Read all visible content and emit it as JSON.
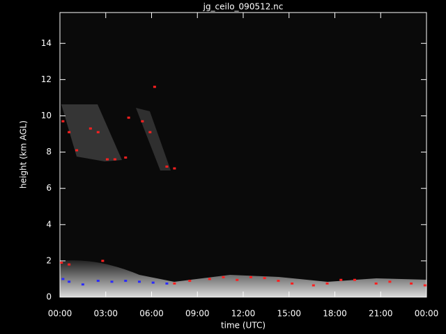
{
  "chart_data": {
    "type": "scatter",
    "title": "jg_ceilo_090512.nc",
    "x_label": "time (UTC)",
    "y_label": "height (km AGL)",
    "xlim": [
      0,
      24
    ],
    "ylim": [
      0,
      15.7
    ],
    "xticks": [
      {
        "value": 0,
        "label": "00:00"
      },
      {
        "value": 3,
        "label": "03:00"
      },
      {
        "value": 6,
        "label": "06:00"
      },
      {
        "value": 9,
        "label": "09:00"
      },
      {
        "value": 12,
        "label": "12:00"
      },
      {
        "value": 15,
        "label": "15:00"
      },
      {
        "value": 18,
        "label": "18:00"
      },
      {
        "value": 21,
        "label": "21:00"
      },
      {
        "value": 24,
        "label": "00:00"
      }
    ],
    "yticks": [
      0,
      2,
      4,
      6,
      8,
      10,
      12,
      14
    ],
    "series": [
      {
        "color": "#ff2020",
        "x": [
          0.2,
          0.6,
          1.1,
          2.0,
          2.5,
          3.1,
          3.6,
          4.3,
          4.5,
          5.4,
          5.9,
          6.2,
          7.0,
          7.5,
          0.1,
          0.6,
          2.8,
          7.5,
          8.5,
          9.8,
          10.7,
          11.6,
          12.5,
          13.4,
          14.3,
          15.2,
          16.6,
          17.5,
          18.4,
          19.3,
          20.7,
          21.6,
          23.0,
          23.9
        ],
        "y": [
          9.7,
          9.1,
          8.1,
          9.3,
          9.1,
          7.6,
          7.6,
          7.7,
          9.9,
          9.7,
          9.1,
          11.6,
          7.2,
          7.1,
          1.9,
          1.8,
          2.0,
          0.75,
          0.9,
          1.0,
          1.1,
          0.95,
          1.1,
          1.05,
          0.9,
          0.75,
          0.65,
          0.75,
          0.95,
          0.95,
          0.75,
          0.85,
          0.75,
          0.65
        ]
      },
      {
        "color": "#2a2aff",
        "x": [
          0.2,
          0.6,
          1.5,
          2.5,
          3.4,
          4.3,
          5.2,
          6.1,
          7.0
        ],
        "y": [
          1.0,
          0.85,
          0.7,
          0.9,
          0.85,
          0.9,
          0.85,
          0.8,
          0.75
        ]
      }
    ]
  }
}
